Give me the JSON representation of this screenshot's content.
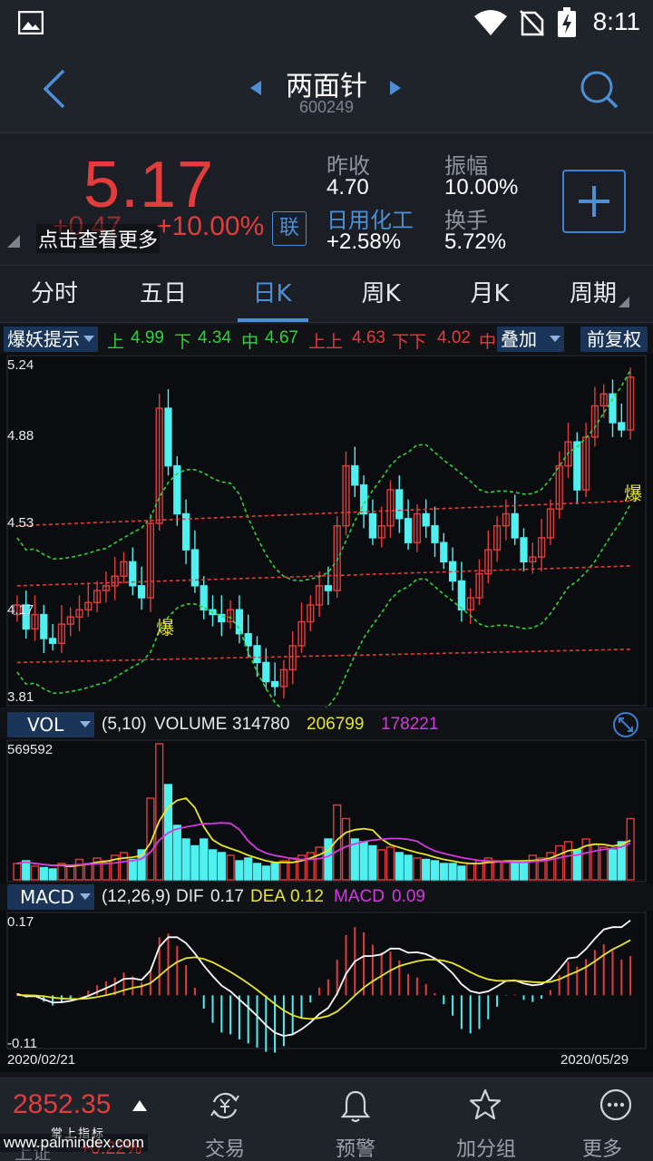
{
  "status": {
    "time": "8:11"
  },
  "header": {
    "title": "两面针",
    "code": "600249"
  },
  "quote": {
    "price": "5.17",
    "change": "+0.47",
    "change_pct": "+10.00%",
    "hint": "点击查看更多",
    "link_badge": "联",
    "prev_close_label": "昨收",
    "prev_close": "4.70",
    "amplitude_label": "振幅",
    "amplitude": "10.00%",
    "industry": "日用化工",
    "industry_change": "+2.58%",
    "turnover_label": "换手",
    "turnover": "5.72%",
    "price_color": "#e23d3d"
  },
  "tabs": [
    {
      "label": "分时"
    },
    {
      "label": "五日"
    },
    {
      "label": "日K"
    },
    {
      "label": "周K"
    },
    {
      "label": "月K"
    },
    {
      "label": "周期"
    }
  ],
  "active_tab": "日K",
  "indicator_bar": {
    "dropdown": "爆妖提示",
    "up_label": "上",
    "up_value": "4.99",
    "down_label": "下",
    "down_value": "4.34",
    "mid_label": "中",
    "mid_value": "4.67",
    "upup_label": "上上",
    "upup_value": "4.63",
    "downdown_label": "下下",
    "downdown_value": "4.02",
    "mid2_label": "中",
    "overlay": "叠加",
    "adjust": "前复权"
  },
  "kline": {
    "y_labels": [
      "5.24",
      "4.88",
      "4.53",
      "4.17",
      "3.81"
    ],
    "marker": "爆"
  },
  "volume": {
    "dropdown": "VOL",
    "params": "(5,10)",
    "volume_label": "VOLUME",
    "volume": "314780",
    "ma5": "206799",
    "ma10": "178221",
    "max_label": "569592"
  },
  "macd": {
    "dropdown": "MACD",
    "params": "(12,26,9)",
    "dif_label": "DIF",
    "dif": "0.17",
    "dea_label": "DEA",
    "dea": "0.12",
    "macd_label": "MACD",
    "macd": "0.09",
    "top_label": "0.17",
    "bottom_label": "-0.11",
    "start_date": "2020/02/21",
    "end_date": "2020/05/29"
  },
  "colors": {
    "up": "#e23d3d",
    "down": "#4ff0f0",
    "accent": "#4d8fd6",
    "yellow": "#e6e62e",
    "magenta": "#d33be0",
    "green": "#2fd43a"
  },
  "bottom_nav": {
    "index_value": "2852.35",
    "index_sub": "掌上指标",
    "index_name": "上证",
    "index_pct": "+0.22%",
    "items": [
      {
        "label": "交易",
        "icon": "yen-exchange-icon"
      },
      {
        "label": "预警",
        "icon": "bell-icon"
      },
      {
        "label": "加分组",
        "icon": "star-icon"
      },
      {
        "label": "更多",
        "icon": "more-icon"
      }
    ]
  },
  "watermark": "www.palmindex.com"
}
